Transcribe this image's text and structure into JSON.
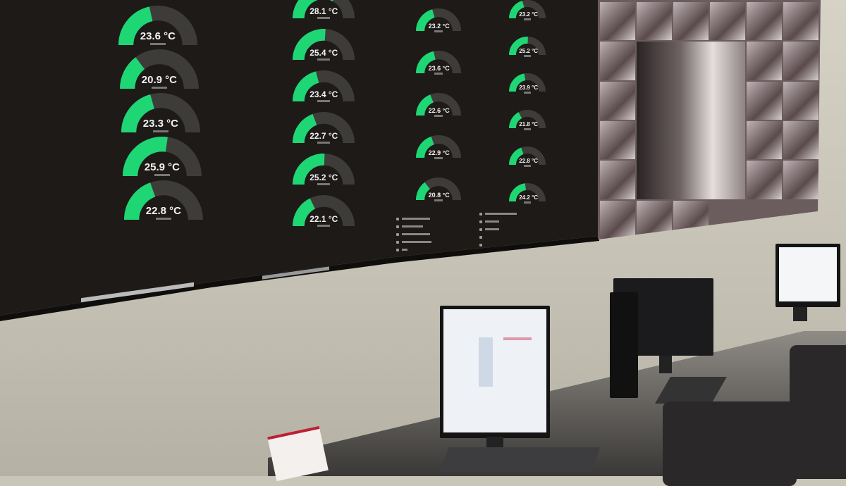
{
  "wall_display": {
    "accent_color": "#1fd675",
    "track_color": "#3e3c39",
    "unit": "°C",
    "columns": [
      {
        "gauges": [
          23.6,
          20.9,
          23.3,
          25.9,
          22.8
        ]
      },
      {
        "gauges": [
          28.1,
          25.4,
          23.4,
          22.7,
          25.2,
          22.1
        ]
      },
      {
        "gauges": [
          23.2,
          23.6,
          22.6,
          22.9,
          20.8
        ]
      },
      {
        "gauges": [
          23.2,
          25.2,
          23.9,
          21.8,
          22.8,
          24.2
        ]
      }
    ]
  },
  "scene": {
    "wall_color": "#c9c5b8",
    "camera_wall": "cctv-mosaic"
  }
}
